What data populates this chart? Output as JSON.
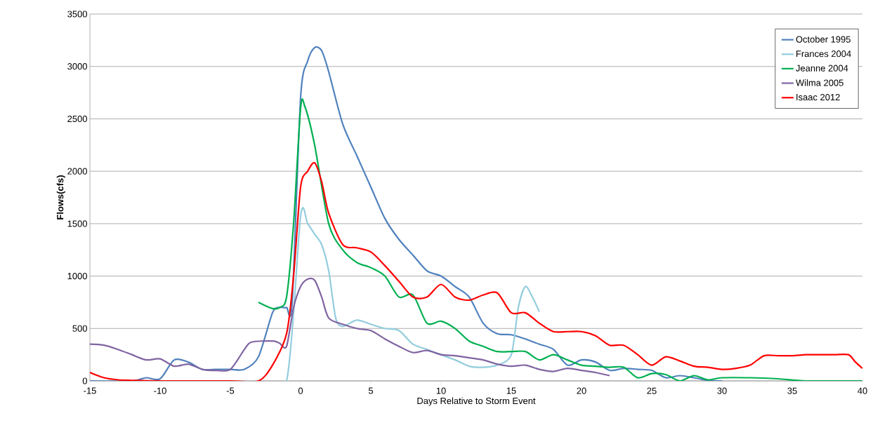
{
  "chart_data": {
    "type": "line",
    "xlabel": "Days Relative to Storm Event",
    "ylabel": "Flows(cfs)",
    "xlim": [
      -15,
      40
    ],
    "ylim": [
      0,
      3500
    ],
    "xticks": [
      -15,
      -10,
      -5,
      0,
      5,
      10,
      15,
      20,
      25,
      30,
      35,
      40
    ],
    "yticks": [
      0,
      500,
      1000,
      1500,
      2000,
      2500,
      3000,
      3500
    ],
    "grid": "y",
    "legend": "top right",
    "marker": "none",
    "line_style": "solid",
    "series": [
      {
        "name": "October 1995",
        "color": "#4f81bd",
        "x": [
          -15,
          -12,
          -11,
          -10,
          -9,
          -8,
          -7,
          -6,
          -5,
          -4,
          -3,
          -2,
          -1.5,
          -1,
          -0.6,
          0,
          0.5,
          1,
          1.5,
          2,
          3,
          4,
          5,
          6,
          7,
          8,
          9,
          10,
          11,
          12,
          13,
          14,
          15,
          16,
          17,
          18,
          19,
          20,
          21,
          22,
          23,
          24,
          25,
          26,
          27,
          28,
          29,
          30
        ],
        "values": [
          0,
          0,
          30,
          20,
          200,
          180,
          110,
          110,
          110,
          110,
          230,
          650,
          700,
          700,
          750,
          2700,
          3050,
          3180,
          3150,
          2950,
          2450,
          2150,
          1850,
          1550,
          1350,
          1200,
          1050,
          1000,
          900,
          800,
          550,
          450,
          440,
          400,
          350,
          300,
          150,
          200,
          180,
          100,
          120,
          110,
          100,
          30,
          50,
          30,
          5,
          0
        ]
      },
      {
        "name": "Frances 2004",
        "color": "#93cddd",
        "x": [
          -3,
          -1,
          0,
          0.5,
          1,
          1.5,
          2,
          2.5,
          3,
          4,
          5,
          6,
          7,
          8,
          9,
          10,
          11,
          12,
          13,
          14,
          15,
          15.5,
          16,
          16.5,
          17
        ],
        "values": [
          0,
          0,
          1570,
          1500,
          1400,
          1300,
          1050,
          600,
          520,
          580,
          540,
          500,
          480,
          350,
          300,
          250,
          200,
          140,
          130,
          150,
          250,
          700,
          900,
          800,
          660
        ]
      },
      {
        "name": "Jeanne 2004",
        "color": "#00b050",
        "x": [
          -3,
          -2,
          -1.5,
          -1,
          -0.5,
          0,
          0.3,
          1,
          2,
          3,
          4,
          5,
          6,
          7,
          8,
          9,
          10,
          11,
          12,
          13,
          14,
          15,
          16,
          17,
          18,
          19,
          20,
          21,
          22,
          23,
          24,
          25,
          26,
          27,
          28,
          29,
          30,
          32,
          34,
          36,
          40
        ],
        "values": [
          750,
          690,
          700,
          800,
          1500,
          2600,
          2620,
          2250,
          1500,
          1250,
          1130,
          1080,
          1000,
          800,
          820,
          550,
          570,
          500,
          380,
          330,
          280,
          280,
          280,
          200,
          250,
          200,
          150,
          140,
          130,
          130,
          30,
          70,
          60,
          0,
          50,
          10,
          30,
          30,
          20,
          0,
          0
        ]
      },
      {
        "name": "Wilma 2005",
        "color": "#8064a2",
        "x": [
          -15,
          -14,
          -13,
          -12,
          -11,
          -10,
          -9,
          -8,
          -7,
          -6,
          -5,
          -4,
          -3.5,
          -2,
          -1.5,
          -1,
          -0.5,
          0,
          0.5,
          1,
          1.5,
          2,
          3,
          4,
          5,
          6,
          7,
          8,
          9,
          10,
          11,
          12,
          13,
          14,
          15,
          16,
          17,
          18,
          19,
          20,
          21,
          22
        ],
        "values": [
          350,
          340,
          300,
          250,
          200,
          210,
          140,
          160,
          110,
          100,
          110,
          300,
          370,
          380,
          360,
          330,
          700,
          900,
          970,
          960,
          800,
          600,
          540,
          500,
          480,
          400,
          330,
          270,
          290,
          250,
          240,
          220,
          200,
          160,
          140,
          150,
          110,
          90,
          120,
          100,
          80,
          50
        ]
      },
      {
        "name": "Isaac 2012",
        "color": "#ff0000",
        "x": [
          -15,
          -14,
          -13,
          -12,
          -10,
          -5,
          -3,
          -2,
          -1,
          -0.5,
          0,
          0.5,
          1,
          1.5,
          2,
          3,
          4,
          5,
          6,
          7,
          8,
          9,
          10,
          11,
          12,
          13,
          14,
          15,
          16,
          17,
          18,
          19,
          20,
          21,
          22,
          23,
          24,
          25,
          26,
          27,
          28,
          29,
          30,
          31,
          32,
          33,
          34,
          35,
          36,
          37,
          38,
          39,
          39.5,
          40
        ],
        "values": [
          80,
          30,
          10,
          5,
          0,
          0,
          0,
          150,
          450,
          1000,
          1850,
          2000,
          2080,
          1900,
          1600,
          1300,
          1270,
          1230,
          1100,
          950,
          800,
          800,
          920,
          800,
          770,
          820,
          840,
          650,
          650,
          550,
          470,
          470,
          470,
          430,
          340,
          340,
          250,
          150,
          230,
          190,
          140,
          130,
          110,
          120,
          150,
          240,
          240,
          240,
          250,
          250,
          250,
          250,
          180,
          120
        ]
      }
    ]
  }
}
